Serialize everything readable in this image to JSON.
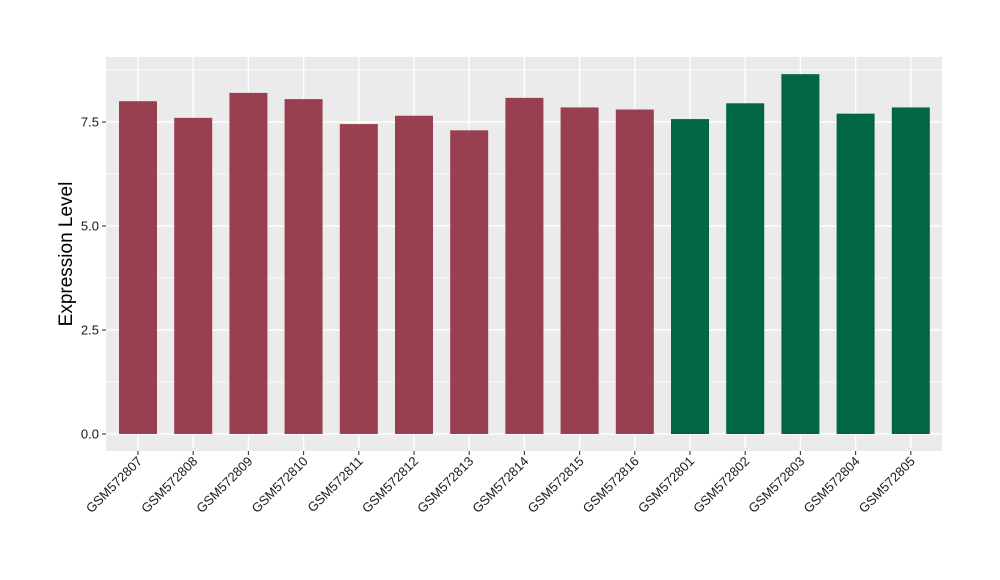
{
  "chart_data": {
    "type": "bar",
    "title": "",
    "xlabel": "",
    "ylabel": "Expression Level",
    "ylim": [
      0,
      8.9
    ],
    "yticks": [
      "0.0",
      "2.5",
      "5.0",
      "7.5"
    ],
    "grid": true,
    "categories": [
      "GSM572807",
      "GSM572808",
      "GSM572809",
      "GSM572810",
      "GSM572811",
      "GSM572812",
      "GSM572813",
      "GSM572814",
      "GSM572815",
      "GSM572816",
      "GSM572801",
      "GSM572802",
      "GSM572803",
      "GSM572804",
      "GSM572805"
    ],
    "values": [
      8.0,
      7.6,
      8.2,
      8.05,
      7.45,
      7.65,
      7.3,
      8.08,
      7.85,
      7.8,
      7.57,
      7.95,
      8.65,
      7.7,
      7.85
    ],
    "groups": [
      0,
      0,
      0,
      0,
      0,
      0,
      0,
      0,
      0,
      0,
      1,
      1,
      1,
      1,
      1
    ],
    "group_colors": [
      "#98404F",
      "#006644"
    ],
    "panel_color": "#EBEBEB",
    "grid_color": "#FFFFFF"
  }
}
